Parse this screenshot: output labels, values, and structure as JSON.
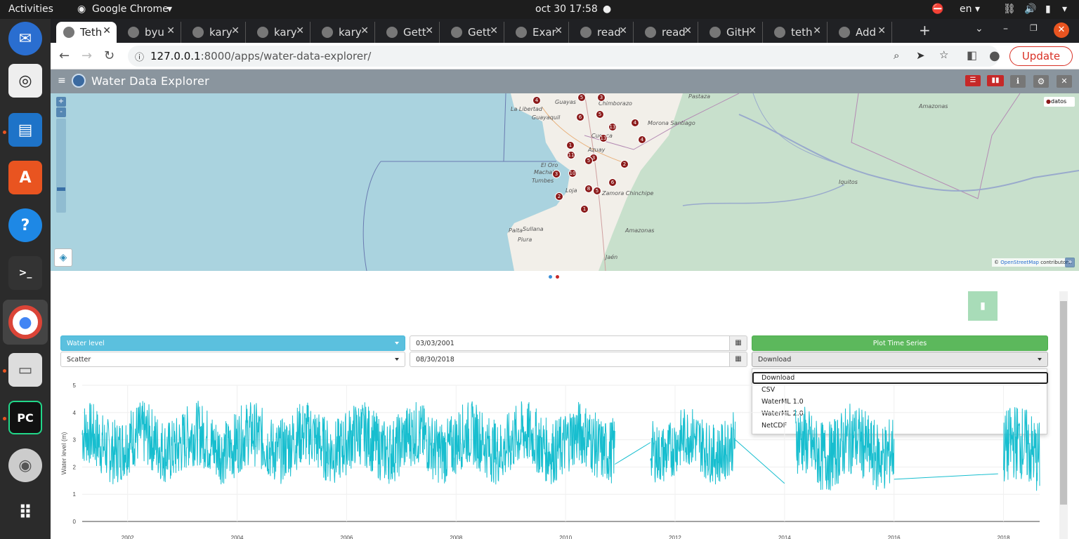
{
  "desktop": {
    "activities": "Activities",
    "app_name": "Google Chrome",
    "clock": "oct 30  17:58",
    "lang": "en"
  },
  "dock_icons": [
    "thunderbird-icon",
    "rhythmbox-icon",
    "writer-icon",
    "software-icon",
    "help-icon",
    "terminal-icon",
    "chrome-icon",
    "files-icon",
    "pycharm-icon",
    "dvd-icon",
    "apps-grid-icon"
  ],
  "tabs": [
    {
      "label": "Teth",
      "active": true
    },
    {
      "label": "byu"
    },
    {
      "label": "kary"
    },
    {
      "label": "kary"
    },
    {
      "label": "kary"
    },
    {
      "label": "Gett"
    },
    {
      "label": "Gett"
    },
    {
      "label": "Exar"
    },
    {
      "label": "read"
    },
    {
      "label": "read"
    },
    {
      "label": "GitH"
    },
    {
      "label": "teth"
    },
    {
      "label": "Add"
    }
  ],
  "toolbar": {
    "url_host": "127.0.0.1",
    "url_rest": ":8000/apps/water-data-explorer/",
    "update_label": "Update"
  },
  "app": {
    "title": "Water Data Explorer",
    "menu_icon": "hamburger-icon",
    "header_buttons": [
      "table-icon",
      "chart-icon",
      "info-icon",
      "gear-icon",
      "close-icon"
    ]
  },
  "map": {
    "zoom_in": "+",
    "zoom_out": "-",
    "legend_label": "datos",
    "attribution_prefix": "© ",
    "attribution_link": "OpenStreetMap",
    "attribution_suffix": " contributors.",
    "labels": [
      "La Libertad",
      "Guayaquil",
      "Guayas",
      "Chimborazo",
      "Morona Santiago",
      "Cuenca",
      "Azuay",
      "Machala",
      "El Oro",
      "Loja",
      "Zamora Chinchipe",
      "Tumbes",
      "Paita",
      "Sullana",
      "Piura",
      "Amazonas",
      "Jaén",
      "Iquitos",
      "Amazonas",
      "Pastaza"
    ],
    "markers": [
      "4",
      "5",
      "3",
      "6",
      "5",
      "13",
      "13",
      "4",
      "4",
      "1",
      "11",
      "3",
      "5",
      "10",
      "3",
      "2",
      "8",
      "5",
      "6",
      "2",
      "1"
    ]
  },
  "controls": {
    "variable": "Water level",
    "chart_type": "Scatter",
    "start_date": "03/03/2001",
    "end_date": "08/30/2018",
    "plot_button": "Plot Time Series",
    "download_select": "Download",
    "download_options": [
      "Download",
      "CSV",
      "WaterML 1.0",
      "WaterML 2.0",
      "NetCDF"
    ]
  },
  "chart_data": {
    "type": "line",
    "ylabel": "Water level (m)",
    "xlabel": "",
    "ylim": [
      0,
      5
    ],
    "yticks": [
      "0",
      "1",
      "2",
      "3",
      "4",
      "5"
    ],
    "xticks": [
      "2002",
      "2004",
      "2006",
      "2008",
      "2010",
      "2012",
      "2014",
      "2016",
      "2018"
    ],
    "xlim": [
      2001.17,
      2018.66
    ],
    "color": "#17becf",
    "segments": [
      {
        "x0": 2001.17,
        "x1": 2010.9,
        "mean": 2.9,
        "amp": 1.2
      },
      {
        "x0": 2011.55,
        "x1": 2013.1,
        "mean": 2.8,
        "amp": 1.1
      },
      {
        "x0": 2014.2,
        "x1": 2016.0,
        "mean": 2.7,
        "amp": 1.3
      },
      {
        "x0": 2018.0,
        "x1": 2018.66,
        "mean": 2.6,
        "amp": 1.4
      }
    ],
    "gaps": [
      {
        "x0": 2010.9,
        "y0": 2.1,
        "x1": 2011.55,
        "y1": 2.9
      },
      {
        "x0": 2013.1,
        "y0": 3.0,
        "x1": 2014.0,
        "y1": 1.4
      },
      {
        "x0": 2016.0,
        "y0": 1.55,
        "x1": 2017.9,
        "y1": 1.75
      }
    ]
  }
}
